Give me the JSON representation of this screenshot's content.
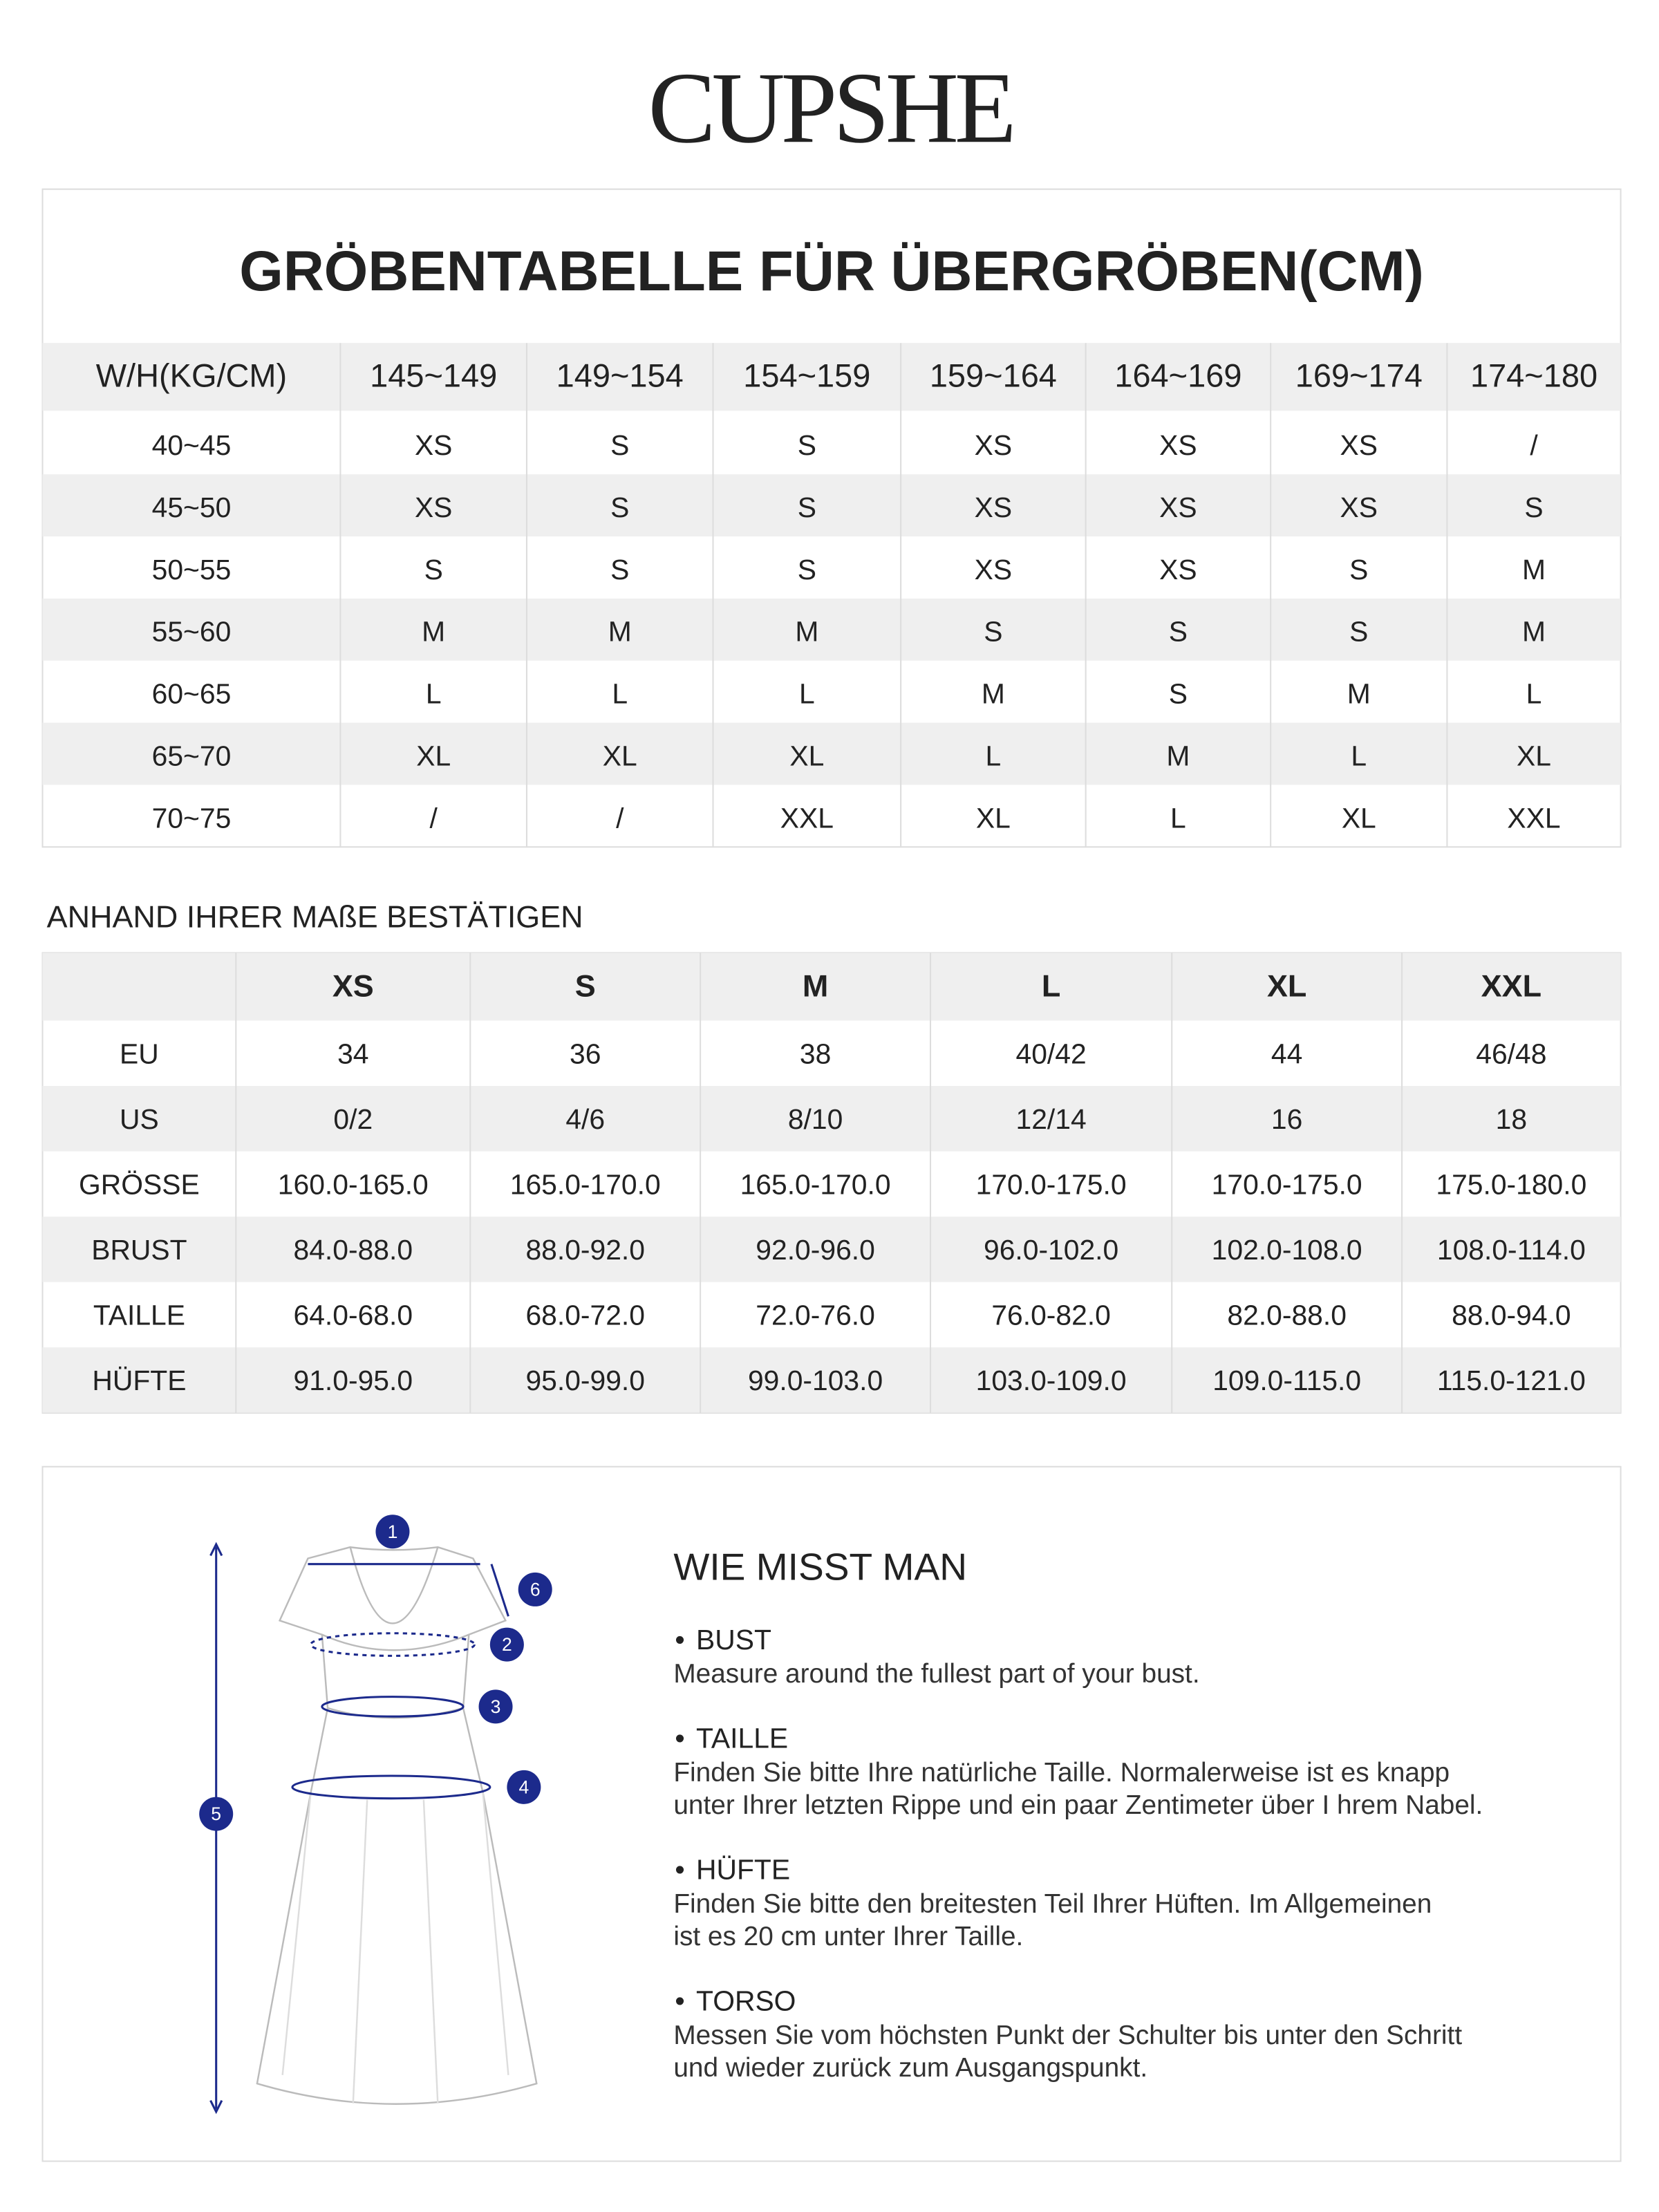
{
  "brand": "CUPSHE",
  "size_table": {
    "title": "GRÖBENTABELLE FÜR ÜBERGRÖBEN(CM)",
    "header": [
      "W/H(KG/CM)",
      "145~149",
      "149~154",
      "154~159",
      "159~164",
      "164~169",
      "169~174",
      "174~180"
    ],
    "rows": [
      [
        "40~45",
        "XS",
        "S",
        "S",
        "XS",
        "XS",
        "XS",
        "/"
      ],
      [
        "45~50",
        "XS",
        "S",
        "S",
        "XS",
        "XS",
        "XS",
        "S"
      ],
      [
        "50~55",
        "S",
        "S",
        "S",
        "XS",
        "XS",
        "S",
        "M"
      ],
      [
        "55~60",
        "M",
        "M",
        "M",
        "S",
        "S",
        "S",
        "M"
      ],
      [
        "60~65",
        "L",
        "L",
        "L",
        "M",
        "S",
        "M",
        "L"
      ],
      [
        "65~70",
        "XL",
        "XL",
        "XL",
        "L",
        "M",
        "L",
        "XL"
      ],
      [
        "70~75",
        "/",
        "/",
        "XXL",
        "XL",
        "L",
        "XL",
        "XXL"
      ]
    ]
  },
  "measure_table": {
    "heading": "ANHAND IHRER MAßE BESTÄTIGEN",
    "header": [
      "XS",
      "S",
      "M",
      "L",
      "XL",
      "XXL"
    ],
    "rows": [
      [
        "EU",
        "34",
        "36",
        "38",
        "40/42",
        "44",
        "46/48"
      ],
      [
        "US",
        "0/2",
        "4/6",
        "8/10",
        "12/14",
        "16",
        "18"
      ],
      [
        "GRÖSSE",
        "160.0-165.0",
        "165.0-170.0",
        "165.0-170.0",
        "170.0-175.0",
        "170.0-175.0",
        "175.0-180.0"
      ],
      [
        "BRUST",
        "84.0-88.0",
        "88.0-92.0",
        "92.0-96.0",
        "96.0-102.0",
        "102.0-108.0",
        "108.0-114.0"
      ],
      [
        "TAILLE",
        "64.0-68.0",
        "68.0-72.0",
        "72.0-76.0",
        "76.0-82.0",
        "82.0-88.0",
        "88.0-94.0"
      ],
      [
        "HÜFTE",
        "91.0-95.0",
        "95.0-99.0",
        "99.0-103.0",
        "103.0-109.0",
        "109.0-115.0",
        "115.0-121.0"
      ]
    ]
  },
  "guide": {
    "title": "WIE MISST MAN",
    "markers": [
      "1",
      "2",
      "3",
      "4",
      "5",
      "6"
    ],
    "sections": [
      {
        "heading": "BUST",
        "lines": [
          "Measure around the fullest part of your bust."
        ]
      },
      {
        "heading": "TAILLE",
        "lines": [
          "Finden Sie bitte Ihre natürliche Taille. Normalerweise ist es  knapp",
          "unter Ihrer letzten Rippe und ein paar Zentimeter über I hrem Nabel."
        ]
      },
      {
        "heading": "HÜFTE",
        "lines": [
          "Finden Sie bitte den breitesten Teil Ihrer Hüften. Im Allgemeinen",
          "ist es 20 cm unter Ihrer Taille."
        ]
      },
      {
        "heading": "TORSO",
        "lines": [
          "Messen Sie vom höchsten Punkt der Schulter bis unter den  Schritt",
          "und wieder zurück zum Ausgangspunkt."
        ]
      }
    ]
  }
}
